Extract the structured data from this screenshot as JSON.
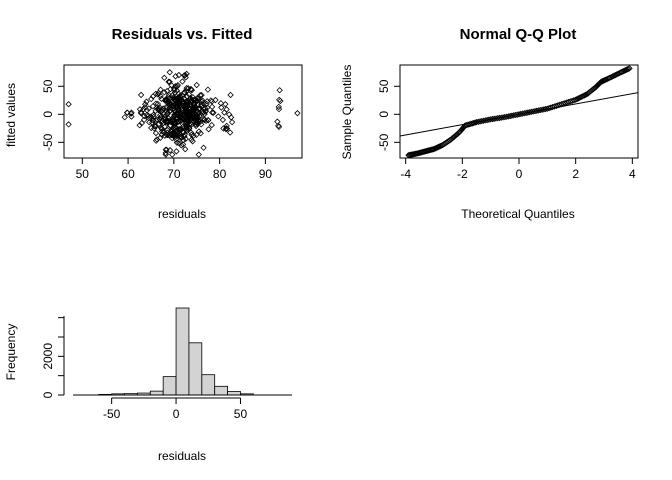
{
  "chart_data": [
    {
      "type": "scatter",
      "title": "Residuals vs. Fitted",
      "xlabel": "residuals",
      "ylabel": "fitted values",
      "xlim": [
        46,
        98
      ],
      "ylim": [
        -78,
        88
      ],
      "xticks": [
        50,
        60,
        70,
        80,
        90
      ],
      "yticks": [
        -50,
        0,
        50
      ],
      "clusters": [
        {
          "x": 47,
          "spread_x": 0.0,
          "spread_y": 18,
          "n": 2
        },
        {
          "x": 60.5,
          "spread_x": 0.6,
          "spread_y": 10,
          "n": 6
        },
        {
          "x": 63,
          "spread_x": 0.6,
          "spread_y": 14,
          "n": 10
        },
        {
          "x": 66.5,
          "spread_x": 1.2,
          "spread_y": 18,
          "n": 40
        },
        {
          "x": 70.5,
          "spread_x": 2.2,
          "spread_y": 30,
          "n": 260
        },
        {
          "x": 73.5,
          "spread_x": 1.6,
          "spread_y": 22,
          "n": 110
        },
        {
          "x": 77,
          "spread_x": 1.4,
          "spread_y": 18,
          "n": 40
        },
        {
          "x": 81.5,
          "spread_x": 0.8,
          "spread_y": 18,
          "n": 16
        },
        {
          "x": 93,
          "spread_x": 0.2,
          "spread_y": 18,
          "n": 8
        },
        {
          "x": 97,
          "spread_x": 0.0,
          "spread_y": 2,
          "n": 1
        }
      ]
    },
    {
      "type": "scatter",
      "title": "Normal Q-Q Plot",
      "xlabel": "Theoretical Quantiles",
      "ylabel": "Sample Quantiles",
      "xlim": [
        -4.2,
        4.2
      ],
      "ylim": [
        -78,
        88
      ],
      "xticks": [
        -4,
        -2,
        0,
        2,
        4
      ],
      "yticks": [
        -50,
        0,
        50
      ],
      "qq_points": [
        [
          -3.9,
          -73
        ],
        [
          -3.6,
          -70
        ],
        [
          -3.3,
          -66
        ],
        [
          -3.0,
          -62
        ],
        [
          -2.7,
          -55
        ],
        [
          -2.4,
          -45
        ],
        [
          -2.1,
          -32
        ],
        [
          -1.9,
          -20
        ],
        [
          -1.5,
          -14
        ],
        [
          -1.0,
          -9
        ],
        [
          -0.5,
          -5
        ],
        [
          0.0,
          0
        ],
        [
          0.5,
          5
        ],
        [
          1.0,
          10
        ],
        [
          1.5,
          18
        ],
        [
          2.0,
          26
        ],
        [
          2.4,
          36
        ],
        [
          2.7,
          48
        ],
        [
          2.9,
          58
        ],
        [
          3.2,
          65
        ],
        [
          3.6,
          75
        ],
        [
          3.9,
          82
        ]
      ],
      "qq_line": {
        "intercept": 0,
        "slope": 9.2
      }
    },
    {
      "type": "bar",
      "title": "",
      "xlabel": "residuals",
      "ylabel": "Frequency",
      "xlim": [
        -80,
        90
      ],
      "ylim": [
        0,
        4500
      ],
      "xticks": [
        -50,
        0,
        50
      ],
      "yticks": [
        0,
        2000
      ],
      "bin_width": 10,
      "bins": [
        {
          "x0": -60,
          "count": 30
        },
        {
          "x0": -50,
          "count": 60
        },
        {
          "x0": -40,
          "count": 70
        },
        {
          "x0": -30,
          "count": 100
        },
        {
          "x0": -20,
          "count": 200
        },
        {
          "x0": -10,
          "count": 950
        },
        {
          "x0": 0,
          "count": 4500
        },
        {
          "x0": 10,
          "count": 2700
        },
        {
          "x0": 20,
          "count": 1050
        },
        {
          "x0": 30,
          "count": 450
        },
        {
          "x0": 40,
          "count": 180
        },
        {
          "x0": 50,
          "count": 60
        }
      ]
    }
  ]
}
